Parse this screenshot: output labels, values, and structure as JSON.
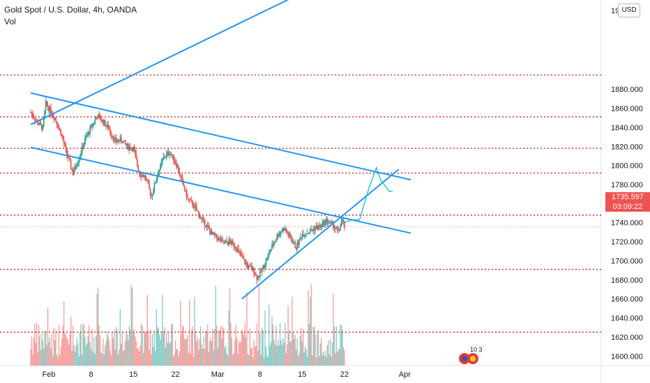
{
  "header": {
    "title": "Gold Spot / U.S. Dollar, 4h, OANDA",
    "vol_label": "Vol"
  },
  "currency_button": "USD",
  "price_tags": {
    "last_price": "1735.597",
    "countdown": "03:09:22"
  },
  "events_badge": "10 3",
  "colors": {
    "up": "#26a69a",
    "down": "#ef5350",
    "trendline": "#2196f3",
    "forecast": "#00bcd4",
    "level": "#e53935"
  },
  "chart_data": {
    "type": "candlestick",
    "symbol": "XAUUSD",
    "timeframe": "4h",
    "ylim": [
      1590,
      1970
    ],
    "y_ticks": [
      1600,
      1620,
      1640,
      1660,
      1680,
      1700,
      1720,
      1740,
      1760,
      1780,
      1800,
      1820,
      1840,
      1860,
      1880
    ],
    "y_tick_labels": [
      "1600.000",
      "1620.000",
      "1640.000",
      "1660.000",
      "1680.000",
      "1700.000",
      "1720.000",
      "1740.000",
      "1760.000",
      "1780.000",
      "1800.000",
      "1820.000",
      "1840.000",
      "1860.000",
      "1880.000"
    ],
    "top_partial_label": "19",
    "x_ticks": [
      "Feb",
      "8",
      "15",
      "22",
      "Mar",
      "8",
      "15",
      "22",
      "Apr"
    ],
    "x_tick_days": [
      0,
      7,
      14,
      21,
      28,
      35,
      42,
      49,
      59
    ],
    "last_price": 1735.597,
    "horizontal_levels": [
      1895,
      1851,
      1818,
      1792,
      1748,
      1691,
      1625
    ],
    "price_series": [
      [
        -3.0,
        1856
      ],
      [
        -2.0,
        1846
      ],
      [
        -1.0,
        1839
      ],
      [
        -0.5,
        1865
      ],
      [
        0.0,
        1860
      ],
      [
        1.0,
        1850
      ],
      [
        2.0,
        1834
      ],
      [
        3.0,
        1812
      ],
      [
        4.0,
        1792
      ],
      [
        5.0,
        1808
      ],
      [
        6.0,
        1827
      ],
      [
        7.0,
        1840
      ],
      [
        8.0,
        1852
      ],
      [
        9.0,
        1846
      ],
      [
        10.0,
        1838
      ],
      [
        11.0,
        1825
      ],
      [
        12.0,
        1827
      ],
      [
        13.0,
        1820
      ],
      [
        14.0,
        1818
      ],
      [
        15.0,
        1792
      ],
      [
        16.0,
        1788
      ],
      [
        17.0,
        1768
      ],
      [
        18.0,
        1790
      ],
      [
        19.0,
        1808
      ],
      [
        20.0,
        1814
      ],
      [
        21.0,
        1804
      ],
      [
        22.0,
        1785
      ],
      [
        23.0,
        1765
      ],
      [
        24.0,
        1758
      ],
      [
        25.0,
        1747
      ],
      [
        26.0,
        1738
      ],
      [
        27.0,
        1728
      ],
      [
        28.0,
        1724
      ],
      [
        29.0,
        1718
      ],
      [
        30.0,
        1720
      ],
      [
        31.0,
        1715
      ],
      [
        32.0,
        1703
      ],
      [
        33.0,
        1694
      ],
      [
        34.0,
        1690
      ],
      [
        34.5,
        1682
      ],
      [
        35.0,
        1686
      ],
      [
        36.0,
        1700
      ],
      [
        37.0,
        1715
      ],
      [
        38.0,
        1728
      ],
      [
        39.0,
        1734
      ],
      [
        40.0,
        1724
      ],
      [
        41.0,
        1714
      ],
      [
        42.0,
        1728
      ],
      [
        43.0,
        1730
      ],
      [
        44.0,
        1734
      ],
      [
        45.0,
        1736
      ],
      [
        46.0,
        1742
      ],
      [
        47.0,
        1738
      ],
      [
        48.0,
        1730
      ],
      [
        48.6,
        1743
      ],
      [
        49.0,
        1736
      ]
    ],
    "volume_range": [
      0,
      90
    ],
    "trendlines": [
      {
        "name": "upper-channel",
        "points": [
          [
            -3,
            1876
          ],
          [
            60,
            1785
          ]
        ]
      },
      {
        "name": "lower-channel",
        "points": [
          [
            -3,
            1819
          ],
          [
            60,
            1729
          ]
        ]
      },
      {
        "name": "long-rising",
        "points": [
          [
            -3,
            1843
          ],
          [
            40,
            1975
          ]
        ]
      },
      {
        "name": "support",
        "points": [
          [
            32,
            1660
          ],
          [
            58,
            1796
          ]
        ]
      }
    ],
    "forecast_path": [
      [
        49.0,
        1740
      ],
      [
        50.3,
        1743
      ],
      [
        51.5,
        1743
      ],
      [
        53.0,
        1775
      ],
      [
        54.3,
        1798
      ],
      [
        55.0,
        1785
      ],
      [
        56.4,
        1773
      ],
      [
        57.0,
        1773
      ]
    ],
    "grid": false,
    "legend": "none"
  }
}
